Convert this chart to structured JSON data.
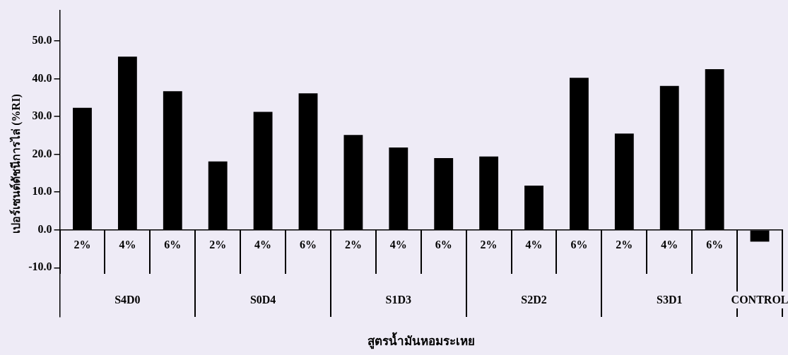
{
  "chart_data": {
    "type": "bar",
    "xlabel": "สูตรน้ำมันหอมระเหย",
    "ylabel": "เปอร์เซนต์ดัชนีการไล่ (%RI)",
    "categories": [
      "2%",
      "4%",
      "6%",
      "2%",
      "4%",
      "6%",
      "2%",
      "4%",
      "6%",
      "2%",
      "4%",
      "6%",
      "2%",
      "4%",
      "6%",
      null
    ],
    "values": [
      32.3,
      45.8,
      36.7,
      18.1,
      31.2,
      36.1,
      25.1,
      21.8,
      19.0,
      19.4,
      11.7,
      40.2,
      25.5,
      38.1,
      42.5,
      -3.1
    ],
    "color": "#000000",
    "ylim": [
      -23,
      58
    ],
    "yticks": [
      {
        "value": -10,
        "label": "-10.0"
      },
      {
        "value": 0,
        "label": "0.0"
      },
      {
        "value": 10,
        "label": "10.0"
      },
      {
        "value": 20,
        "label": "20.0"
      },
      {
        "value": 30,
        "label": "30.0"
      },
      {
        "value": 40,
        "label": "40.0"
      },
      {
        "value": 50,
        "label": "50.0"
      }
    ],
    "annotations": [
      "S4D0",
      "S0D4",
      "S1D3",
      "S2D2",
      "S3D1",
      "CONTROL"
    ],
    "grid": false,
    "legend": false
  }
}
